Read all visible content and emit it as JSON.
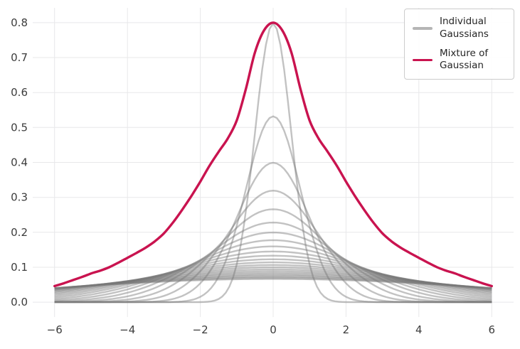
{
  "figure": {
    "background": "#ffffff",
    "grid_color": "#e8e8ea",
    "tick_color": "#3c3c3c"
  },
  "legend": {
    "position": "upper right",
    "items": [
      {
        "label": "Individual Gaussians",
        "color": "#b5b5b5"
      },
      {
        "label": "Mixture of Gaussian",
        "color": "#c9134f"
      }
    ]
  },
  "chart_data": {
    "type": "line",
    "title": "",
    "xlabel": "",
    "ylabel": "",
    "xlim": [
      -6,
      6
    ],
    "ylim": [
      0,
      0.8
    ],
    "grid": true,
    "legend_position": "upper right",
    "xticks": [
      {
        "v": -6,
        "label": "−6"
      },
      {
        "v": -4,
        "label": "−4"
      },
      {
        "v": -2,
        "label": "−2"
      },
      {
        "v": 0,
        "label": "0"
      },
      {
        "v": 2,
        "label": "2"
      },
      {
        "v": 4,
        "label": "4"
      },
      {
        "v": 6,
        "label": "6"
      }
    ],
    "yticks": [
      {
        "v": 0.0,
        "label": "0.0"
      },
      {
        "v": 0.1,
        "label": "0.1"
      },
      {
        "v": 0.2,
        "label": "0.2"
      },
      {
        "v": 0.3,
        "label": "0.3"
      },
      {
        "v": 0.4,
        "label": "0.4"
      },
      {
        "v": 0.5,
        "label": "0.5"
      },
      {
        "v": 0.6,
        "label": "0.6"
      },
      {
        "v": 0.7,
        "label": "0.7"
      },
      {
        "v": 0.8,
        "label": "0.8"
      }
    ],
    "series": [
      {
        "name": "Individual Gaussians",
        "kind": "gaussian_pdf_family",
        "description": "Normal pdfs N(mean=0, sigma^2) plotted on x in [-6, 6]; peak of each curve = 0.3989/sigma",
        "mean": 0,
        "sigmas": [
          0.5,
          0.75,
          1.0,
          1.25,
          1.5,
          1.75,
          2.0,
          2.25,
          2.5,
          2.75,
          3.0,
          3.25,
          3.5,
          3.75,
          4.0,
          4.25,
          4.5,
          4.75,
          5.0,
          5.25,
          5.5,
          5.75,
          6.0
        ],
        "color": "#787878",
        "opacity": 0.45,
        "line_width": 2.4,
        "x_step": 0.1
      },
      {
        "name": "Mixture of Gaussian",
        "kind": "sampled_curve",
        "description": "Heavy-tailed mixture density scaled to peak 0.8 at x=0; symmetric about 0",
        "symmetric": true,
        "peak": 0.8,
        "color": "#c9134f",
        "line_width": 3.4,
        "samples_abs_x": [
          [
            0.0,
            0.8
          ],
          [
            0.25,
            0.778
          ],
          [
            0.5,
            0.715
          ],
          [
            0.75,
            0.61
          ],
          [
            1.0,
            0.52
          ],
          [
            1.25,
            0.468
          ],
          [
            1.5,
            0.43
          ],
          [
            1.75,
            0.39
          ],
          [
            2.0,
            0.345
          ],
          [
            2.25,
            0.303
          ],
          [
            2.5,
            0.264
          ],
          [
            2.75,
            0.228
          ],
          [
            3.0,
            0.197
          ],
          [
            3.25,
            0.174
          ],
          [
            3.5,
            0.156
          ],
          [
            3.75,
            0.141
          ],
          [
            4.0,
            0.127
          ],
          [
            4.25,
            0.113
          ],
          [
            4.5,
            0.1
          ],
          [
            4.75,
            0.09
          ],
          [
            5.0,
            0.082
          ],
          [
            5.25,
            0.072
          ],
          [
            5.5,
            0.063
          ],
          [
            5.75,
            0.054
          ],
          [
            6.0,
            0.046
          ]
        ]
      }
    ]
  }
}
